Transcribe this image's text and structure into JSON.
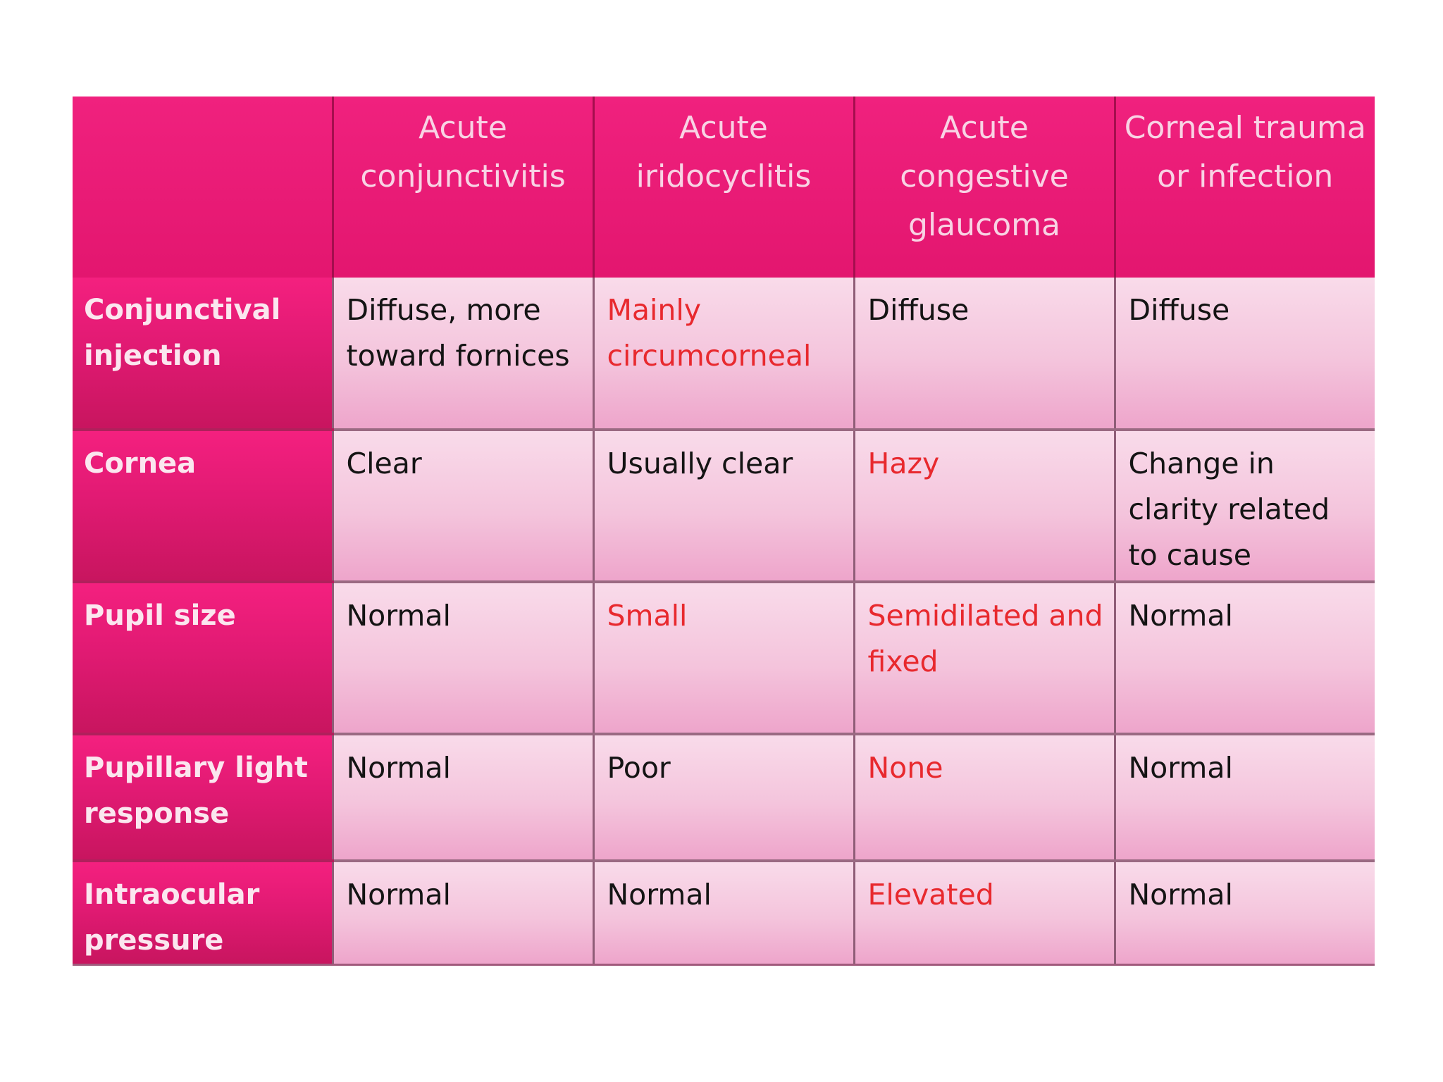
{
  "table": {
    "headers": [
      "",
      "Acute conjunctivitis",
      "Acute iridocyclitis",
      "Acute congestive glaucoma",
      "Corneal trauma or infection"
    ],
    "rows": [
      {
        "label": "Conjunctival injection",
        "cells": [
          "Diffuse, more toward fornices",
          "Mainly circumcorneal",
          "Diffuse",
          "Diffuse"
        ]
      },
      {
        "label": "Cornea",
        "cells": [
          "Clear",
          "Usually clear",
          "Hazy",
          "Change in clarity related to cause"
        ]
      },
      {
        "label": "Pupil size",
        "cells": [
          "Normal",
          "Small",
          "Semidilated and fixed",
          "Normal"
        ]
      },
      {
        "label": "Pupillary light response",
        "cells": [
          "Normal",
          "Poor",
          "None",
          "Normal"
        ]
      },
      {
        "label": "Intraocular pressure",
        "cells": [
          "Normal",
          "Normal",
          "Elevated",
          "Normal"
        ]
      }
    ]
  },
  "colors": {
    "header_bg": "#e8197a",
    "row_label_bg": "#e11a73",
    "cell_bg": "#f4c4dc",
    "highlight_text": "#e8292e",
    "normal_text": "#141414"
  }
}
